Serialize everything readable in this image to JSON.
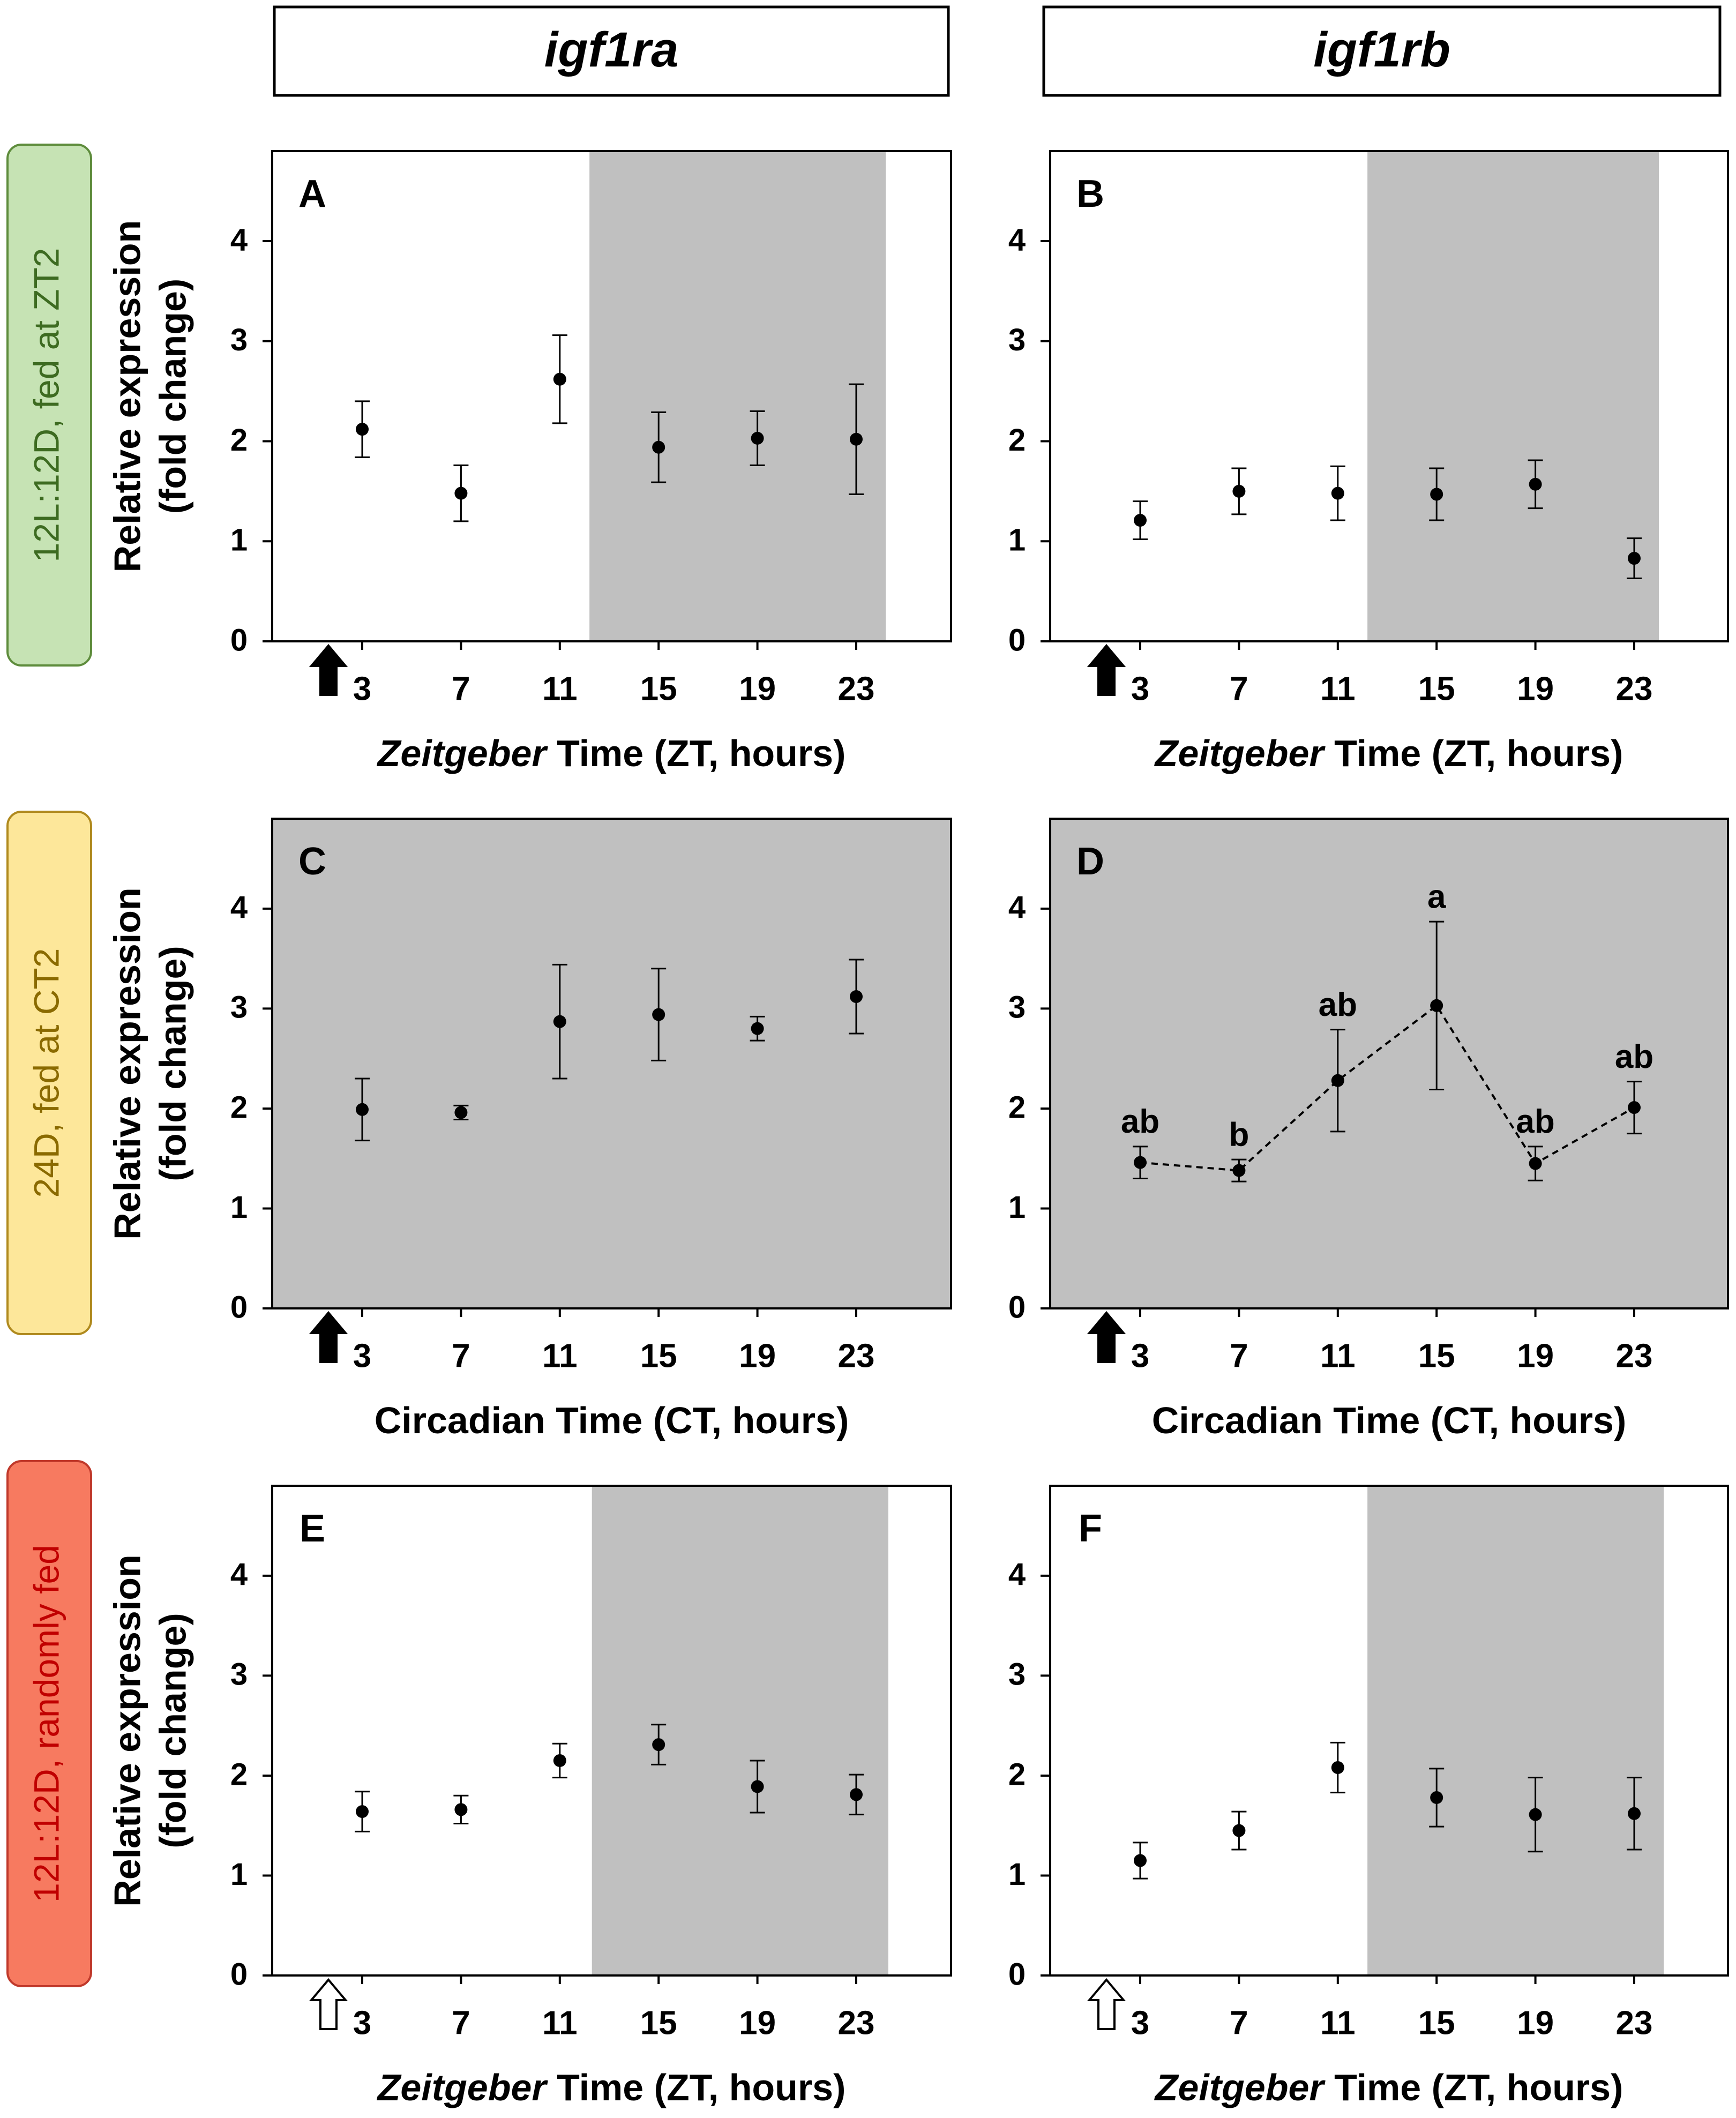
{
  "columns": [
    "igf1ra",
    "igf1rb"
  ],
  "rows": [
    {
      "label": "12L:12D, fed at ZT2",
      "bg": "#c6e3b4",
      "border": "#5e8c3c",
      "color": "#3d6b21"
    },
    {
      "label": "24D, fed at CT2",
      "bg": "#fde79a",
      "border": "#b08a1e",
      "color": "#8a6a00"
    },
    {
      "label": "12L:12D, randomly fed",
      "bg": "#f77a60",
      "border": "#c0392b",
      "color": "#c00000"
    }
  ],
  "y_label_line1": "Relative expression",
  "y_label_line2": "(fold change)",
  "chart_data": [
    {
      "panel": "A",
      "type": "scatter",
      "gene": "igf1ra",
      "xlabel_italic": "Zeitgeber",
      "xlabel_rest": " Time (ZT, hours)",
      "x": [
        3,
        7,
        11,
        15,
        19,
        23
      ],
      "y": [
        2.12,
        1.48,
        2.62,
        1.94,
        2.03,
        2.02
      ],
      "err": [
        0.28,
        0.28,
        0.44,
        0.35,
        0.27,
        0.55
      ],
      "ylim": [
        0,
        4.9
      ],
      "yticks": [
        0,
        1,
        2,
        3,
        4
      ],
      "dark_phase": [
        12.2,
        24.2
      ],
      "arrow": "filled",
      "connect": false,
      "letters": []
    },
    {
      "panel": "B",
      "type": "scatter",
      "gene": "igf1rb",
      "xlabel_italic": "Zeitgeber",
      "xlabel_rest": " Time (ZT, hours)",
      "x": [
        3,
        7,
        11,
        15,
        19,
        23
      ],
      "y": [
        1.21,
        1.5,
        1.48,
        1.47,
        1.57,
        0.83
      ],
      "err": [
        0.19,
        0.23,
        0.27,
        0.26,
        0.24,
        0.2
      ],
      "ylim": [
        0,
        4.9
      ],
      "yticks": [
        0,
        1,
        2,
        3,
        4
      ],
      "dark_phase": [
        12.2,
        24.0
      ],
      "arrow": "filled",
      "connect": false,
      "letters": []
    },
    {
      "panel": "C",
      "type": "scatter",
      "gene": "igf1ra",
      "xlabel_italic": "",
      "xlabel_rest": "Circadian Time (CT, hours)",
      "x": [
        3,
        7,
        11,
        15,
        19,
        23
      ],
      "y": [
        1.99,
        1.96,
        2.87,
        2.94,
        2.8,
        3.12
      ],
      "err": [
        0.31,
        0.07,
        0.57,
        0.46,
        0.12,
        0.37
      ],
      "ylim": [
        0,
        4.9
      ],
      "yticks": [
        0,
        1,
        2,
        3,
        4
      ],
      "dark_phase": "all",
      "arrow": "filled",
      "connect": false,
      "letters": []
    },
    {
      "panel": "D",
      "type": "line",
      "gene": "igf1rb",
      "xlabel_italic": "",
      "xlabel_rest": "Circadian Time (CT, hours)",
      "x": [
        3,
        7,
        11,
        15,
        19,
        23
      ],
      "y": [
        1.46,
        1.38,
        2.28,
        3.03,
        1.45,
        2.01
      ],
      "err": [
        0.16,
        0.11,
        0.51,
        0.84,
        0.17,
        0.26
      ],
      "ylim": [
        0,
        4.9
      ],
      "yticks": [
        0,
        1,
        2,
        3,
        4
      ],
      "dark_phase": "all",
      "arrow": "filled",
      "connect": true,
      "letters": [
        "ab",
        "b",
        "ab",
        "a",
        "ab",
        "ab"
      ]
    },
    {
      "panel": "E",
      "type": "scatter",
      "gene": "igf1ra",
      "xlabel_italic": "Zeitgeber",
      "xlabel_rest": " Time (ZT, hours)",
      "x": [
        3,
        7,
        11,
        15,
        19,
        23
      ],
      "y": [
        1.64,
        1.66,
        2.15,
        2.31,
        1.89,
        1.81
      ],
      "err": [
        0.2,
        0.14,
        0.17,
        0.2,
        0.26,
        0.2
      ],
      "ylim": [
        0,
        4.9
      ],
      "yticks": [
        0,
        1,
        2,
        3,
        4
      ],
      "dark_phase": [
        12.3,
        24.3
      ],
      "arrow": "hollow",
      "connect": false,
      "letters": []
    },
    {
      "panel": "F",
      "type": "scatter",
      "gene": "igf1rb",
      "xlabel_italic": "Zeitgeber",
      "xlabel_rest": " Time (ZT, hours)",
      "x": [
        3,
        7,
        11,
        15,
        19,
        23
      ],
      "y": [
        1.15,
        1.45,
        2.08,
        1.78,
        1.61,
        1.62
      ],
      "err": [
        0.18,
        0.19,
        0.25,
        0.29,
        0.37,
        0.36
      ],
      "ylim": [
        0,
        4.9
      ],
      "yticks": [
        0,
        1,
        2,
        3,
        4
      ],
      "dark_phase": [
        12.2,
        24.2
      ],
      "arrow": "hollow",
      "connect": false,
      "letters": []
    }
  ]
}
